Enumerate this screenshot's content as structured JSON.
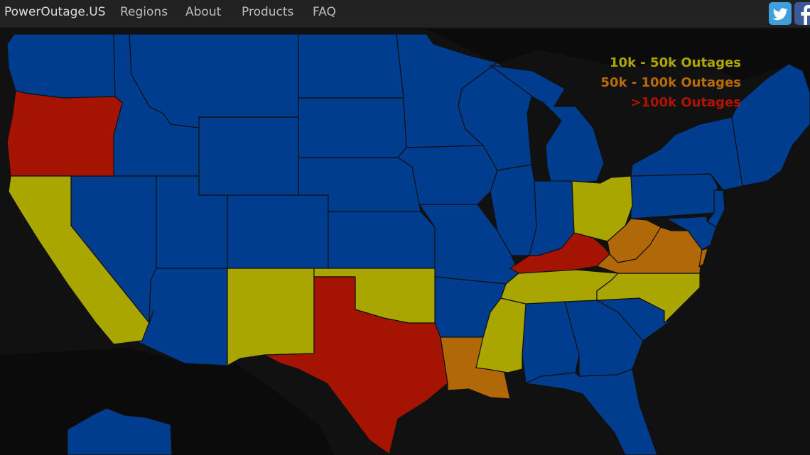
{
  "nav": {
    "brand": "PowerOutage.US",
    "links": [
      "Regions",
      "About",
      "Products",
      "FAQ"
    ],
    "social": [
      "twitter-icon",
      "facebook-icon"
    ]
  },
  "legend": {
    "items": [
      {
        "label": "10k - 50k Outages",
        "color": "#afa500"
      },
      {
        "label": "50k - 100k Outages",
        "color": "#b96a09"
      },
      {
        "label": ">100k Outages",
        "color": "#ae1400"
      }
    ]
  },
  "map": {
    "base_color": "#003d8f",
    "background_color": "#111111",
    "land_color": "#0b0b0b",
    "states": [
      {
        "state": "Oregon",
        "category": ">100k Outages",
        "color": "#a51402"
      },
      {
        "state": "Kentucky",
        "category": ">100k Outages",
        "color": "#a51402"
      },
      {
        "state": "Texas",
        "category": ">100k Outages",
        "color": "#a51402"
      },
      {
        "state": "Virginia",
        "category": "50k - 100k Outages",
        "color": "#b16808"
      },
      {
        "state": "West Virginia",
        "category": "50k - 100k Outages",
        "color": "#b16808"
      },
      {
        "state": "Louisiana",
        "category": "50k - 100k Outages",
        "color": "#b16808"
      },
      {
        "state": "California",
        "category": "10k - 50k Outages",
        "color": "#aaa601"
      },
      {
        "state": "New Mexico",
        "category": "10k - 50k Outages",
        "color": "#aaa601"
      },
      {
        "state": "Oklahoma",
        "category": "10k - 50k Outages",
        "color": "#aaa601"
      },
      {
        "state": "Tennessee",
        "category": "10k - 50k Outages",
        "color": "#aaa601"
      },
      {
        "state": "North Carolina",
        "category": "10k - 50k Outages",
        "color": "#aaa601"
      },
      {
        "state": "Mississippi",
        "category": "10k - 50k Outages",
        "color": "#aaa601"
      },
      {
        "state": "Ohio",
        "category": "10k - 50k Outages",
        "color": "#aaa601"
      }
    ]
  }
}
